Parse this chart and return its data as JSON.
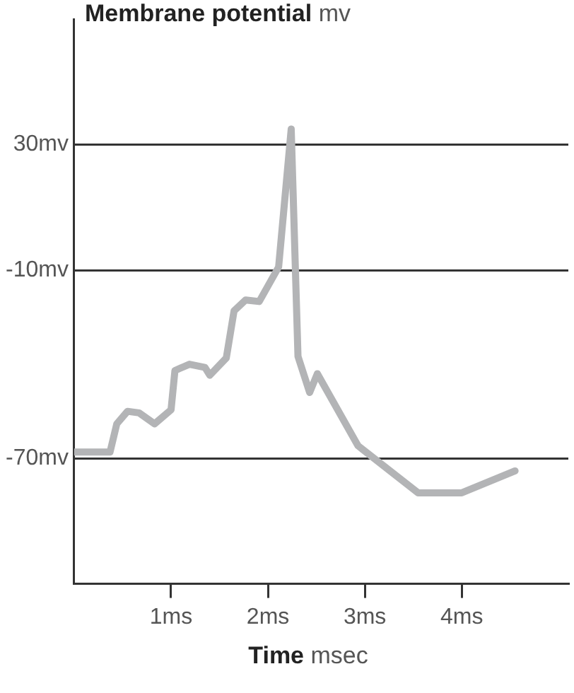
{
  "chart_data": {
    "type": "line",
    "ylabel": "Membrane potential mv",
    "xlabel": "Time msec",
    "xlim": [
      0,
      5.1
    ],
    "ylim": [
      -110,
      70
    ],
    "xticks": [
      {
        "value": 1,
        "label": "1ms"
      },
      {
        "value": 2,
        "label": "2ms"
      },
      {
        "value": 3,
        "label": "3ms"
      },
      {
        "value": 4,
        "label": "4ms"
      }
    ],
    "yticks": [
      {
        "value": -70,
        "label": "-70mv"
      },
      {
        "value": -10,
        "label": "-10mv"
      },
      {
        "value": 30,
        "label": "30mv"
      }
    ],
    "grid": "y",
    "legend": false,
    "marker": "none",
    "line_style": "solid",
    "series": [
      {
        "color": "#b3b4b6",
        "x": [
          0,
          0.37,
          0.44,
          0.55,
          0.67,
          0.83,
          1.0,
          1.04,
          1.19,
          1.35,
          1.4,
          1.57,
          1.65,
          1.77,
          1.91,
          2.11,
          2.24,
          2.31,
          2.43,
          2.51,
          2.93,
          3.55,
          4.0,
          4.55
        ],
        "values": [
          -68,
          -68,
          -59,
          -55,
          -55.5,
          -59,
          -54.5,
          -42,
          -40,
          -41,
          -43.5,
          -38,
          -23,
          -19.5,
          -20,
          -9,
          35,
          -37.5,
          -49,
          -43,
          -66,
          -81,
          -81,
          -74
        ]
      }
    ]
  }
}
